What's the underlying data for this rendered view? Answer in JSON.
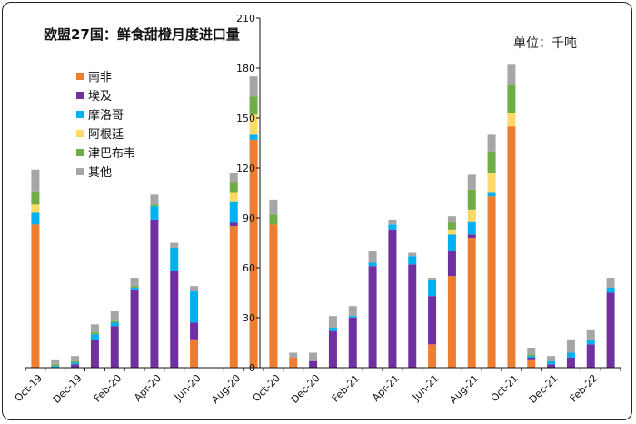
{
  "chart_data": {
    "type": "bar",
    "stacked": true,
    "title": "欧盟27国：鲜食甜橙月度进口量",
    "unit_label": "单位：千吨",
    "xlabel": "",
    "ylabel": "",
    "ylim": [
      0,
      210
    ],
    "yticks": [
      0,
      30,
      60,
      90,
      120,
      150,
      180,
      210
    ],
    "grid": false,
    "legend_position": "top-left",
    "categories": [
      "Oct-19",
      "Nov-19",
      "Dec-19",
      "Jan-20",
      "Feb-20",
      "Mar-20",
      "Apr-20",
      "May-20",
      "Jun-20",
      "Jul-20",
      "Aug-20",
      "Sep-20",
      "Oct-20",
      "Nov-20",
      "Dec-20",
      "Jan-21",
      "Feb-21",
      "Mar-21",
      "Apr-21",
      "May-21",
      "Jun-21",
      "Jul-21",
      "Aug-21",
      "Sep-21",
      "Oct-21",
      "Nov-21",
      "Dec-21",
      "Jan-22",
      "Feb-22",
      "Mar-22"
    ],
    "xtick_labels": [
      "Oct-19",
      "",
      "Dec-19",
      "",
      "Feb-20",
      "",
      "Apr-20",
      "",
      "Jun-20",
      "",
      "Aug-20",
      "",
      "Oct-20",
      "",
      "Dec-20",
      "",
      "Feb-21",
      "",
      "Apr-21",
      "",
      "Jun-21",
      "",
      "Aug-21",
      "",
      "Oct-21",
      "",
      "Dec-21",
      "",
      "Feb-22",
      ""
    ],
    "series": [
      {
        "name": "南非",
        "color": "#ED7D31",
        "values": [
          86,
          0,
          0,
          0,
          0,
          0,
          0,
          0,
          17,
          0,
          85,
          137,
          86,
          6,
          0,
          0,
          0,
          0,
          0,
          0,
          14,
          55,
          78,
          103,
          145,
          5,
          0,
          0,
          0,
          0
        ]
      },
      {
        "name": "埃及",
        "color": "#7030A0",
        "values": [
          0,
          0,
          2,
          17,
          25,
          47,
          89,
          58,
          10,
          0,
          2,
          0,
          0,
          0,
          4,
          22,
          30,
          61,
          83,
          62,
          29,
          15,
          2,
          0,
          0,
          1,
          2,
          6,
          14,
          45
        ]
      },
      {
        "name": "摩洛哥",
        "color": "#00B0F0",
        "values": [
          7,
          1,
          1,
          3,
          2,
          1,
          8,
          14,
          19,
          0,
          13,
          3,
          0,
          0,
          0,
          2,
          1,
          2,
          3,
          5,
          10,
          10,
          8,
          2,
          0,
          1,
          2,
          3,
          3,
          3
        ]
      },
      {
        "name": "阿根廷",
        "color": "#FFD966",
        "values": [
          5,
          0,
          0,
          0,
          0,
          0,
          0,
          0,
          0,
          0,
          5,
          12,
          0,
          0,
          0,
          0,
          0,
          0,
          0,
          0,
          0,
          3,
          7,
          12,
          8,
          0,
          0,
          0,
          0,
          0
        ]
      },
      {
        "name": "津巴布韦",
        "color": "#70AD47",
        "values": [
          8,
          1,
          1,
          1,
          1,
          1,
          1,
          0,
          0,
          0,
          6,
          11,
          6,
          0,
          0,
          0,
          0,
          0,
          0,
          0,
          0,
          4,
          12,
          13,
          17,
          1,
          0,
          0,
          0,
          0
        ]
      },
      {
        "name": "其他",
        "color": "#A6A6A6",
        "values": [
          13,
          3,
          3,
          5,
          6,
          5,
          6,
          3,
          3,
          0,
          6,
          12,
          9,
          3,
          5,
          7,
          6,
          7,
          3,
          2,
          1,
          4,
          9,
          10,
          12,
          4,
          3,
          8,
          6,
          6
        ]
      }
    ]
  }
}
